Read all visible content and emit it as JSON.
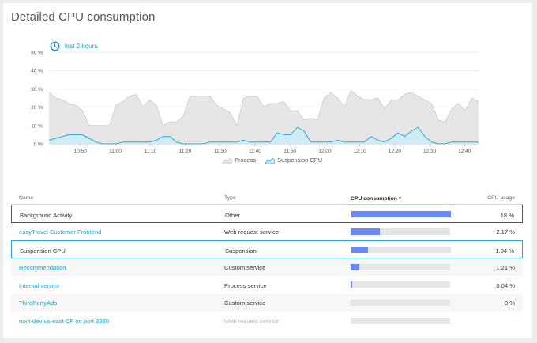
{
  "header": {
    "title": "Detailed CPU consumption",
    "timeframe": "last 2 hours"
  },
  "colors": {
    "process_fill": "#e6e6e6",
    "process_stroke": "#c9c9c9",
    "suspension_fill": "#cdebf7",
    "suspension_stroke": "#28a9e0",
    "bar": "#6a88f7",
    "link": "#1aa2c9"
  },
  "legend": {
    "process": "Process",
    "suspension": "Suspension CPU"
  },
  "chart_data": {
    "type": "area",
    "x_tick_labels": [
      "10:50",
      "11:00",
      "11:10",
      "11:20",
      "11:30",
      "11:40",
      "11:50",
      "12:00",
      "12:10",
      "12:20",
      "12:30",
      "12:40"
    ],
    "y_tick_labels": [
      "0 %",
      "10 %",
      "20 %",
      "30 %",
      "40 %",
      "50 %"
    ],
    "ylim": [
      0,
      50
    ],
    "grid": true,
    "legend_placement": "bottom-center",
    "x_start_minute": 641,
    "x_end_minute": 764,
    "series": [
      {
        "name": "Process",
        "values": [
          28,
          25,
          24,
          22,
          21,
          18,
          10,
          10,
          10,
          10,
          21,
          23,
          26,
          27,
          20,
          24,
          21,
          10,
          12,
          12,
          15,
          26,
          26,
          26,
          26,
          21,
          19,
          17,
          10,
          25,
          26,
          26,
          20,
          22,
          22,
          23,
          18,
          18,
          13,
          14,
          13,
          25,
          28,
          25,
          20,
          29,
          26,
          24,
          24,
          25,
          19,
          24,
          24,
          27,
          28,
          26,
          24,
          22,
          13,
          12,
          19,
          22,
          18,
          25,
          23
        ]
      },
      {
        "name": "Suspension CPU",
        "values": [
          2,
          3,
          4,
          5,
          5,
          5,
          3,
          1,
          0,
          0,
          0,
          1,
          1,
          1,
          1,
          1,
          2,
          4,
          4,
          1,
          0,
          0,
          0,
          0,
          1,
          1,
          1,
          1,
          1,
          2,
          1,
          1,
          1,
          1,
          6,
          5,
          5,
          9,
          7,
          1,
          1,
          1,
          1,
          2,
          1,
          1,
          1,
          1,
          4,
          2,
          1,
          3,
          6,
          4,
          7,
          9,
          4,
          1,
          0,
          0,
          1,
          1,
          1,
          1,
          1
        ]
      }
    ]
  },
  "table": {
    "columns": {
      "name": "Name",
      "type": "Type",
      "consumption": "CPU consumption ▾",
      "usage": "CPU usage"
    },
    "rows": [
      {
        "name": "Background Activity",
        "type": "Other",
        "usage": "18 %",
        "share": 1.0
      },
      {
        "name": "easyTravel Customer Frontend",
        "type": "Web request service",
        "usage": "2.17 %",
        "share": 0.29
      },
      {
        "name": "Suspension CPU",
        "type": "Suspension",
        "usage": "1.04 %",
        "share": 0.17
      },
      {
        "name": "Recommendation",
        "type": "Custom service",
        "usage": "1.21 %",
        "share": 0.09
      },
      {
        "name": "Internal service",
        "type": "Process service",
        "usage": "0.04 %",
        "share": 0.01
      },
      {
        "name": "ThirdPartyAds",
        "type": "Custom service",
        "usage": "0 %",
        "share": 0.0
      },
      {
        "name": "ruxit-dev-us-east-CF on port 8280",
        "type": "Web request service",
        "usage": "-",
        "share": 0.0
      }
    ]
  }
}
